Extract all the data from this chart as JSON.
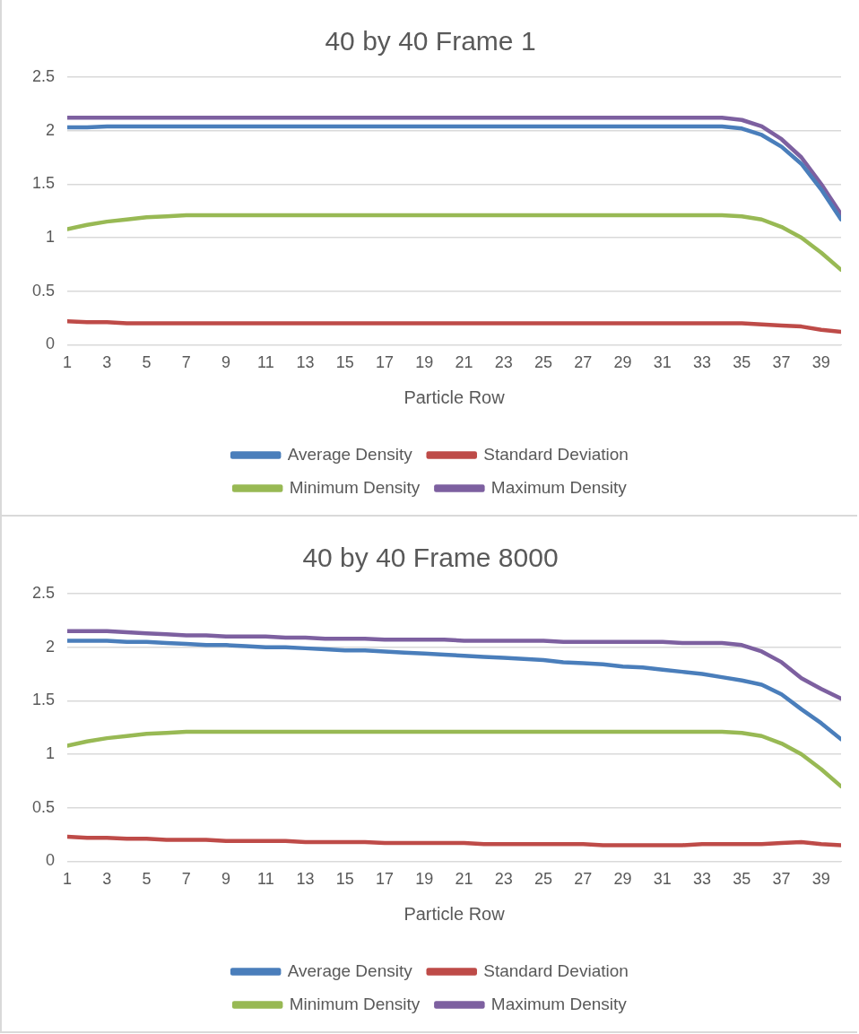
{
  "chart_data": [
    {
      "type": "line",
      "title": "40 by 40 Frame 1",
      "xlabel": "Particle Row",
      "x": [
        1,
        2,
        3,
        4,
        5,
        6,
        7,
        8,
        9,
        10,
        11,
        12,
        13,
        14,
        15,
        16,
        17,
        18,
        19,
        20,
        21,
        22,
        23,
        24,
        25,
        26,
        27,
        28,
        29,
        30,
        31,
        32,
        33,
        34,
        35,
        36,
        37,
        38,
        39,
        40
      ],
      "xlim": [
        1,
        40
      ],
      "xticks": [
        1,
        3,
        5,
        7,
        9,
        11,
        13,
        15,
        17,
        19,
        21,
        23,
        25,
        27,
        29,
        31,
        33,
        35,
        37,
        39
      ],
      "series": [
        {
          "name": "Average Density",
          "color": "#4a7ebb",
          "values": [
            2.03,
            2.03,
            2.04,
            2.04,
            2.04,
            2.04,
            2.04,
            2.04,
            2.04,
            2.04,
            2.04,
            2.04,
            2.04,
            2.04,
            2.04,
            2.04,
            2.04,
            2.04,
            2.04,
            2.04,
            2.04,
            2.04,
            2.04,
            2.04,
            2.04,
            2.04,
            2.04,
            2.04,
            2.04,
            2.04,
            2.04,
            2.04,
            2.04,
            2.04,
            2.02,
            1.96,
            1.85,
            1.69,
            1.45,
            1.17
          ]
        },
        {
          "name": "Standard Deviation",
          "color": "#be4b48",
          "values": [
            0.22,
            0.21,
            0.21,
            0.2,
            0.2,
            0.2,
            0.2,
            0.2,
            0.2,
            0.2,
            0.2,
            0.2,
            0.2,
            0.2,
            0.2,
            0.2,
            0.2,
            0.2,
            0.2,
            0.2,
            0.2,
            0.2,
            0.2,
            0.2,
            0.2,
            0.2,
            0.2,
            0.2,
            0.2,
            0.2,
            0.2,
            0.2,
            0.2,
            0.2,
            0.2,
            0.19,
            0.18,
            0.17,
            0.14,
            0.12
          ]
        },
        {
          "name": "Minimum Density",
          "color": "#98b954",
          "values": [
            1.08,
            1.12,
            1.15,
            1.17,
            1.19,
            1.2,
            1.21,
            1.21,
            1.21,
            1.21,
            1.21,
            1.21,
            1.21,
            1.21,
            1.21,
            1.21,
            1.21,
            1.21,
            1.21,
            1.21,
            1.21,
            1.21,
            1.21,
            1.21,
            1.21,
            1.21,
            1.21,
            1.21,
            1.21,
            1.21,
            1.21,
            1.21,
            1.21,
            1.21,
            1.2,
            1.17,
            1.1,
            1.0,
            0.86,
            0.7
          ]
        },
        {
          "name": "Maximum Density",
          "color": "#7d60a0",
          "values": [
            2.12,
            2.12,
            2.12,
            2.12,
            2.12,
            2.12,
            2.12,
            2.12,
            2.12,
            2.12,
            2.12,
            2.12,
            2.12,
            2.12,
            2.12,
            2.12,
            2.12,
            2.12,
            2.12,
            2.12,
            2.12,
            2.12,
            2.12,
            2.12,
            2.12,
            2.12,
            2.12,
            2.12,
            2.12,
            2.12,
            2.12,
            2.12,
            2.12,
            2.12,
            2.1,
            2.04,
            1.92,
            1.75,
            1.5,
            1.22
          ]
        }
      ],
      "ylim": [
        0,
        2.5
      ],
      "yticks": [
        0,
        0.5,
        1,
        1.5,
        2,
        2.5
      ],
      "grid": "y",
      "legend": "bottom",
      "marker": "none",
      "line_style": "solid"
    },
    {
      "type": "line",
      "title": "40 by 40 Frame 8000",
      "xlabel": "Particle Row",
      "x": [
        1,
        2,
        3,
        4,
        5,
        6,
        7,
        8,
        9,
        10,
        11,
        12,
        13,
        14,
        15,
        16,
        17,
        18,
        19,
        20,
        21,
        22,
        23,
        24,
        25,
        26,
        27,
        28,
        29,
        30,
        31,
        32,
        33,
        34,
        35,
        36,
        37,
        38,
        39,
        40
      ],
      "xlim": [
        1,
        40
      ],
      "xticks": [
        1,
        3,
        5,
        7,
        9,
        11,
        13,
        15,
        17,
        19,
        21,
        23,
        25,
        27,
        29,
        31,
        33,
        35,
        37,
        39
      ],
      "series": [
        {
          "name": "Average Density",
          "color": "#4a7ebb",
          "values": [
            2.06,
            2.06,
            2.06,
            2.05,
            2.05,
            2.04,
            2.03,
            2.02,
            2.02,
            2.01,
            2.0,
            2.0,
            1.99,
            1.98,
            1.97,
            1.97,
            1.96,
            1.95,
            1.94,
            1.93,
            1.92,
            1.91,
            1.9,
            1.89,
            1.88,
            1.86,
            1.85,
            1.84,
            1.82,
            1.81,
            1.79,
            1.77,
            1.75,
            1.72,
            1.69,
            1.65,
            1.56,
            1.42,
            1.29,
            1.14
          ]
        },
        {
          "name": "Standard Deviation",
          "color": "#be4b48",
          "values": [
            0.23,
            0.22,
            0.22,
            0.21,
            0.21,
            0.2,
            0.2,
            0.2,
            0.19,
            0.19,
            0.19,
            0.19,
            0.18,
            0.18,
            0.18,
            0.18,
            0.17,
            0.17,
            0.17,
            0.17,
            0.17,
            0.16,
            0.16,
            0.16,
            0.16,
            0.16,
            0.16,
            0.15,
            0.15,
            0.15,
            0.15,
            0.15,
            0.16,
            0.16,
            0.16,
            0.16,
            0.17,
            0.18,
            0.16,
            0.15
          ]
        },
        {
          "name": "Minimum Density",
          "color": "#98b954",
          "values": [
            1.08,
            1.12,
            1.15,
            1.17,
            1.19,
            1.2,
            1.21,
            1.21,
            1.21,
            1.21,
            1.21,
            1.21,
            1.21,
            1.21,
            1.21,
            1.21,
            1.21,
            1.21,
            1.21,
            1.21,
            1.21,
            1.21,
            1.21,
            1.21,
            1.21,
            1.21,
            1.21,
            1.21,
            1.21,
            1.21,
            1.21,
            1.21,
            1.21,
            1.21,
            1.2,
            1.17,
            1.1,
            1.0,
            0.86,
            0.7
          ]
        },
        {
          "name": "Maximum Density",
          "color": "#7d60a0",
          "values": [
            2.15,
            2.15,
            2.15,
            2.14,
            2.13,
            2.12,
            2.11,
            2.11,
            2.1,
            2.1,
            2.1,
            2.09,
            2.09,
            2.08,
            2.08,
            2.08,
            2.07,
            2.07,
            2.07,
            2.07,
            2.06,
            2.06,
            2.06,
            2.06,
            2.06,
            2.05,
            2.05,
            2.05,
            2.05,
            2.05,
            2.05,
            2.04,
            2.04,
            2.04,
            2.02,
            1.96,
            1.86,
            1.71,
            1.61,
            1.52
          ]
        }
      ],
      "ylim": [
        0,
        2.5
      ],
      "yticks": [
        0,
        0.5,
        1,
        1.5,
        2,
        2.5
      ],
      "grid": "y",
      "legend": "bottom",
      "marker": "none",
      "line_style": "solid"
    }
  ]
}
